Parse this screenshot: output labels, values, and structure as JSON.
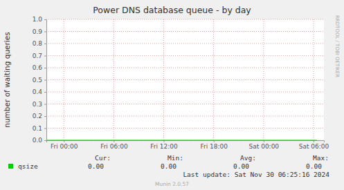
{
  "chart_data": {
    "type": "line",
    "title": "Power DNS database queue - by day",
    "y_label": "number of waiting queries",
    "x": [
      -2.1,
      30.4
    ],
    "series": [
      {
        "name": "qsize",
        "color": "#00cc00",
        "values": [
          0,
          0
        ],
        "stats": [
          "0.00",
          "0.00",
          "0.00",
          "0.00"
        ]
      }
    ],
    "stats_headers": [
      "Cur:",
      "Min:",
      "Avg:",
      "Max:"
    ],
    "xlim": [
      -2.1,
      31.25
    ],
    "xticks": [
      {
        "value": 0,
        "label": "Fri 00:00"
      },
      {
        "value": 6,
        "label": "Fri 06:00"
      },
      {
        "value": 12,
        "label": "Fri 12:00"
      },
      {
        "value": 18,
        "label": "Fri 18:00"
      },
      {
        "value": 24,
        "label": "Sat 00:00"
      },
      {
        "value": 30,
        "label": "Sat 06:00"
      }
    ],
    "ylim": [
      0,
      1
    ],
    "yticks": [
      {
        "value": 0,
        "label": "0.0"
      },
      0.1,
      0.2,
      0.3,
      0.4,
      0.5,
      0.6,
      0.7,
      0.8,
      0.9,
      {
        "value": 1,
        "label": "1.0"
      }
    ],
    "grid": true,
    "last_update": "Last update: Sat Nov 30 06:25:16 2024",
    "footer": "Munin 2.0.57",
    "watermark": "RRDTOOL / TOBI OETIKER"
  }
}
